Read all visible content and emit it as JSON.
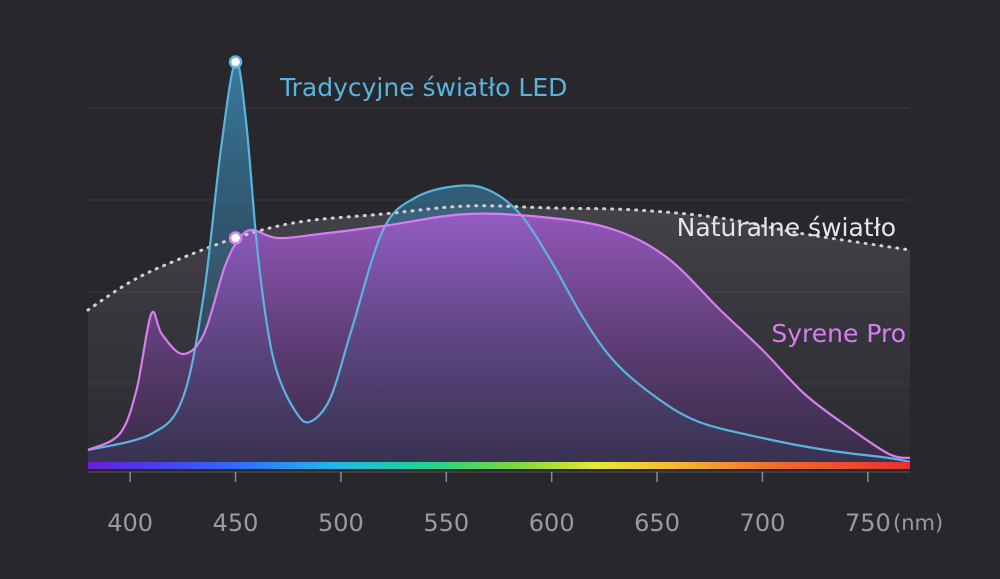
{
  "chart_data": {
    "type": "area",
    "title": "",
    "xlabel": "(nm)",
    "ylabel": "",
    "xlim": [
      380,
      770
    ],
    "ylim": [
      0,
      1
    ],
    "x_ticks": [
      400,
      450,
      500,
      550,
      600,
      650,
      700,
      750
    ],
    "grid": true,
    "legend": "inline labels",
    "series": [
      {
        "name": "Tradycyjne światło LED",
        "color": "#5ab4de",
        "fill": "area",
        "points": [
          [
            380,
            0.03
          ],
          [
            410,
            0.07
          ],
          [
            425,
            0.16
          ],
          [
            435,
            0.42
          ],
          [
            443,
            0.78
          ],
          [
            450,
            1.0
          ],
          [
            455,
            0.85
          ],
          [
            460,
            0.55
          ],
          [
            465,
            0.34
          ],
          [
            470,
            0.22
          ],
          [
            478,
            0.13
          ],
          [
            485,
            0.1
          ],
          [
            495,
            0.16
          ],
          [
            505,
            0.33
          ],
          [
            520,
            0.58
          ],
          [
            535,
            0.66
          ],
          [
            555,
            0.69
          ],
          [
            570,
            0.68
          ],
          [
            585,
            0.62
          ],
          [
            600,
            0.5
          ],
          [
            615,
            0.36
          ],
          [
            630,
            0.25
          ],
          [
            650,
            0.16
          ],
          [
            670,
            0.1
          ],
          [
            700,
            0.06
          ],
          [
            730,
            0.03
          ],
          [
            760,
            0.01
          ],
          [
            770,
            0.0
          ]
        ]
      },
      {
        "name": "Naturalne światło",
        "color": "#d8d8dc",
        "fill": "dotted",
        "points": [
          [
            380,
            0.38
          ],
          [
            400,
            0.45
          ],
          [
            420,
            0.5
          ],
          [
            450,
            0.56
          ],
          [
            480,
            0.6
          ],
          [
            520,
            0.62
          ],
          [
            560,
            0.64
          ],
          [
            600,
            0.635
          ],
          [
            640,
            0.63
          ],
          [
            680,
            0.61
          ],
          [
            720,
            0.57
          ],
          [
            770,
            0.53
          ]
        ]
      },
      {
        "name": "Syrene Pro",
        "color": "#d77ef0",
        "fill": "area",
        "points": [
          [
            380,
            0.03
          ],
          [
            395,
            0.07
          ],
          [
            403,
            0.18
          ],
          [
            410,
            0.37
          ],
          [
            415,
            0.32
          ],
          [
            425,
            0.27
          ],
          [
            435,
            0.32
          ],
          [
            445,
            0.49
          ],
          [
            452,
            0.56
          ],
          [
            458,
            0.58
          ],
          [
            470,
            0.56
          ],
          [
            490,
            0.57
          ],
          [
            520,
            0.59
          ],
          [
            560,
            0.62
          ],
          [
            600,
            0.61
          ],
          [
            630,
            0.58
          ],
          [
            655,
            0.51
          ],
          [
            680,
            0.38
          ],
          [
            700,
            0.28
          ],
          [
            720,
            0.17
          ],
          [
            740,
            0.09
          ],
          [
            760,
            0.02
          ],
          [
            770,
            0.01
          ]
        ]
      }
    ],
    "markers": [
      {
        "series": "Tradycyjne światło LED",
        "x": 450,
        "y": 1.0
      },
      {
        "series": "Syrene Pro",
        "x": 450,
        "y": 0.56
      }
    ],
    "spectrum_bar": true
  }
}
